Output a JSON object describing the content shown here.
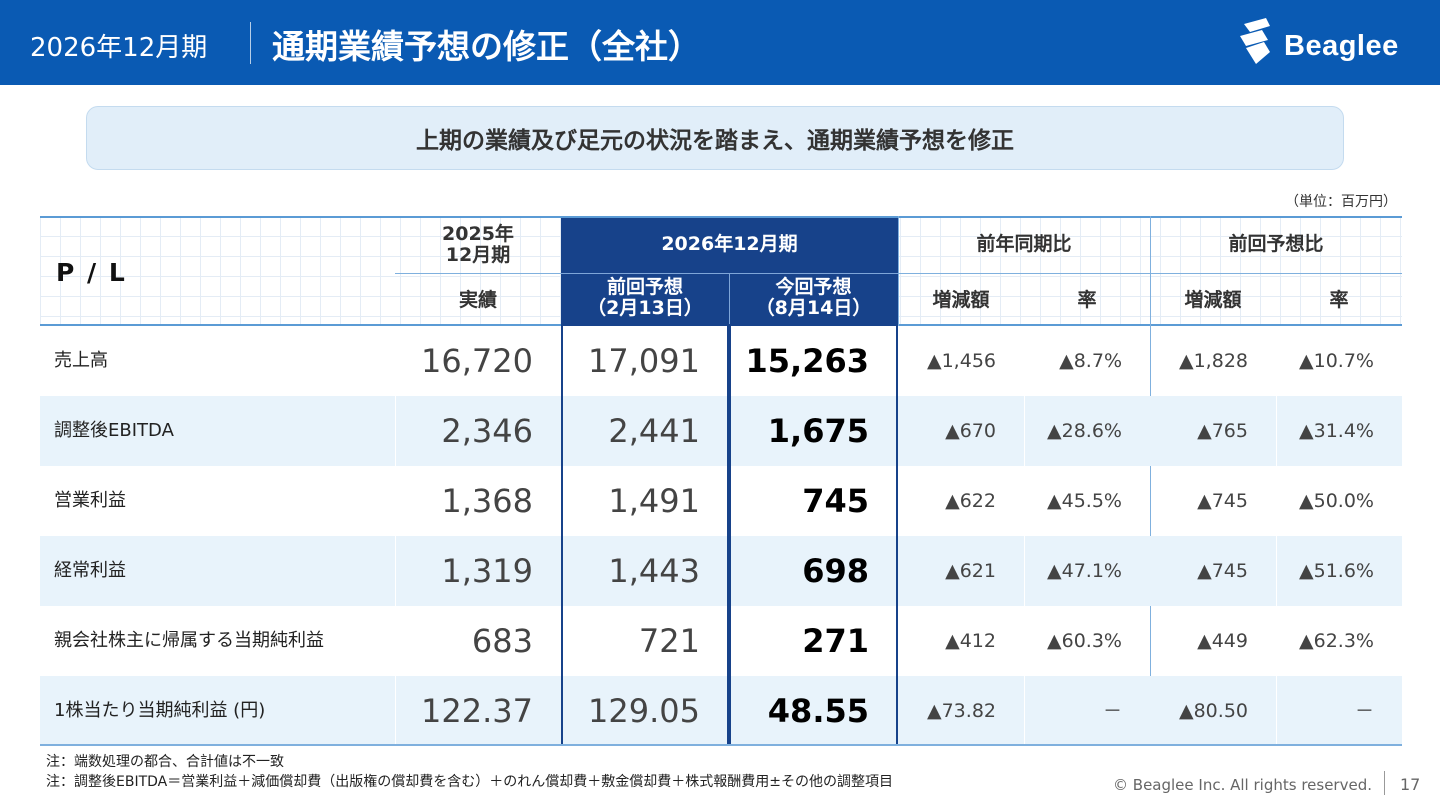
{
  "header": {
    "period": "2026年12月期",
    "title": "通期業績予想の修正（全社）",
    "logo_text": "Beaglee"
  },
  "banner": "上期の業績及び足元の状況を踏まえ、通期業績予想を修正",
  "unit": "（単位：百万円）",
  "table": {
    "pl_label": "P / L",
    "col_2025": "2025年\n12月期",
    "col_2025_sub": "実績",
    "col_2026": "2026年12月期",
    "col_prev": "前回予想\n（2月13日）",
    "col_curr": "今回予想\n（8月14日）",
    "col_yoy": "前年同期比",
    "col_vs_prev": "前回予想比",
    "sub_diff": "増減額",
    "sub_rate": "率",
    "rows": [
      {
        "label": "売上高",
        "actual": "16,720",
        "prev": "17,091",
        "curr": "15,263",
        "yoy_diff": "▲1,456",
        "yoy_rate": "▲8.7%",
        "vp_diff": "▲1,828",
        "vp_rate": "▲10.7%"
      },
      {
        "label": "調整後EBITDA",
        "actual": "2,346",
        "prev": "2,441",
        "curr": "1,675",
        "yoy_diff": "▲670",
        "yoy_rate": "▲28.6%",
        "vp_diff": "▲765",
        "vp_rate": "▲31.4%"
      },
      {
        "label": "営業利益",
        "actual": "1,368",
        "prev": "1,491",
        "curr": "745",
        "yoy_diff": "▲622",
        "yoy_rate": "▲45.5%",
        "vp_diff": "▲745",
        "vp_rate": "▲50.0%"
      },
      {
        "label": "経常利益",
        "actual": "1,319",
        "prev": "1,443",
        "curr": "698",
        "yoy_diff": "▲621",
        "yoy_rate": "▲47.1%",
        "vp_diff": "▲745",
        "vp_rate": "▲51.6%"
      },
      {
        "label": "親会社株主に帰属する当期純利益",
        "actual": "683",
        "prev": "721",
        "curr": "271",
        "yoy_diff": "▲412",
        "yoy_rate": "▲60.3%",
        "vp_diff": "▲449",
        "vp_rate": "▲62.3%"
      },
      {
        "label": "1株当たり当期純利益 (円)",
        "actual": "122.37",
        "prev": "129.05",
        "curr": "48.55",
        "yoy_diff": "▲73.82",
        "yoy_rate": "－",
        "vp_diff": "▲80.50",
        "vp_rate": "－"
      }
    ]
  },
  "notes": [
    "注：端数処理の都合、合計値は不一致",
    "注：調整後EBITDA＝営業利益＋減価償却費（出版権の償却費を含む）＋のれん償却費＋敷金償却費＋株式報酬費用±その他の調整項目"
  ],
  "footer": {
    "copyright": "© Beaglee Inc. All rights reserved.",
    "page": "17"
  },
  "colors": {
    "header_bg": "#0a5ab3",
    "column_highlight": "#17428a",
    "row_alt": "#e8f3fb",
    "banner_bg": "#e1eef9"
  }
}
